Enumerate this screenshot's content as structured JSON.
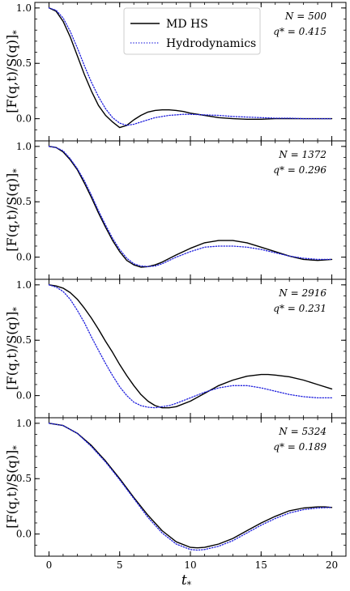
{
  "chart_data": {
    "type": "line",
    "xlabel": "t",
    "xlabel_sub": "*",
    "ylabel": "[F(q,t)/S(q)]",
    "ylabel_sub": "*",
    "xlim": [
      -1,
      21
    ],
    "ylim": [
      -0.2,
      1.05
    ],
    "xticks": [
      0,
      5,
      10,
      15,
      20
    ],
    "yticks": [
      0.0,
      0.5,
      1.0
    ],
    "ytick_labels": [
      "0.0",
      "0.5",
      "1.0"
    ],
    "legend": {
      "placement": "top-center (panel 1)",
      "entries": [
        {
          "label": "MD HS",
          "color": "#000000",
          "style": "solid"
        },
        {
          "label": "Hydrodynamics",
          "color": "#1f1fdd",
          "style": "dotted"
        }
      ]
    },
    "panels": [
      {
        "annotation_N": "N = 500",
        "annotation_q": "q* = 0.415",
        "series": [
          {
            "name": "MD HS",
            "x": [
              0,
              0.5,
              1,
              1.5,
              2,
              2.5,
              3,
              3.5,
              4,
              4.5,
              5,
              5.5,
              6,
              6.5,
              7,
              7.5,
              8,
              8.5,
              9,
              9.5,
              10,
              11,
              12,
              13,
              14,
              15,
              16,
              17,
              18,
              19,
              20
            ],
            "y": [
              1.0,
              0.97,
              0.88,
              0.74,
              0.57,
              0.4,
              0.25,
              0.12,
              0.03,
              -0.03,
              -0.08,
              -0.06,
              -0.01,
              0.03,
              0.06,
              0.075,
              0.08,
              0.08,
              0.075,
              0.065,
              0.05,
              0.03,
              0.01,
              0.0,
              -0.005,
              -0.005,
              0.0,
              0.0,
              0.0,
              0.0,
              0.0
            ]
          },
          {
            "name": "Hydrodynamics",
            "x": [
              0,
              0.5,
              1,
              1.5,
              2,
              2.5,
              3,
              3.5,
              4,
              4.5,
              5,
              5.5,
              6,
              6.5,
              7,
              7.5,
              8,
              8.5,
              9,
              9.5,
              10,
              11,
              12,
              13,
              14,
              15,
              16,
              17,
              18,
              19,
              20
            ],
            "y": [
              1.0,
              0.98,
              0.91,
              0.79,
              0.64,
              0.48,
              0.33,
              0.2,
              0.09,
              0.01,
              -0.04,
              -0.06,
              -0.05,
              -0.03,
              -0.01,
              0.01,
              0.02,
              0.03,
              0.035,
              0.04,
              0.04,
              0.035,
              0.03,
              0.02,
              0.015,
              0.01,
              0.005,
              0.005,
              0.0,
              0.0,
              0.0
            ]
          }
        ]
      },
      {
        "annotation_N": "N = 1372",
        "annotation_q": "q* = 0.296",
        "series": [
          {
            "name": "MD HS",
            "x": [
              0,
              0.5,
              1,
              1.5,
              2,
              2.5,
              3,
              3.5,
              4,
              4.5,
              5,
              5.5,
              6,
              6.5,
              7,
              7.5,
              8,
              9,
              10,
              11,
              12,
              13,
              14,
              15,
              16,
              17,
              18,
              19,
              20
            ],
            "y": [
              1.0,
              0.99,
              0.95,
              0.88,
              0.79,
              0.67,
              0.54,
              0.4,
              0.27,
              0.15,
              0.05,
              -0.03,
              -0.07,
              -0.09,
              -0.085,
              -0.07,
              -0.045,
              0.02,
              0.08,
              0.13,
              0.15,
              0.15,
              0.13,
              0.09,
              0.05,
              0.01,
              -0.02,
              -0.03,
              -0.02
            ]
          },
          {
            "name": "Hydrodynamics",
            "x": [
              0,
              0.5,
              1,
              1.5,
              2,
              2.5,
              3,
              3.5,
              4,
              4.5,
              5,
              5.5,
              6,
              6.5,
              7,
              7.5,
              8,
              9,
              10,
              11,
              12,
              13,
              14,
              15,
              16,
              17,
              18,
              19,
              20
            ],
            "y": [
              1.0,
              0.99,
              0.96,
              0.89,
              0.8,
              0.69,
              0.56,
              0.42,
              0.29,
              0.17,
              0.07,
              -0.01,
              -0.06,
              -0.08,
              -0.085,
              -0.08,
              -0.06,
              0.0,
              0.05,
              0.09,
              0.1,
              0.1,
              0.09,
              0.07,
              0.04,
              0.01,
              -0.01,
              -0.02,
              -0.02
            ]
          }
        ]
      },
      {
        "annotation_N": "N = 2916",
        "annotation_q": "q* = 0.231",
        "series": [
          {
            "name": "MD HS",
            "x": [
              0,
              0.5,
              1,
              1.5,
              2,
              2.5,
              3,
              3.5,
              4,
              4.5,
              5,
              5.5,
              6,
              6.5,
              7,
              7.5,
              8,
              8.5,
              9,
              10,
              11,
              12,
              13,
              14,
              15,
              15.5,
              16,
              17,
              18,
              19,
              20
            ],
            "y": [
              1.0,
              0.99,
              0.97,
              0.93,
              0.87,
              0.79,
              0.7,
              0.6,
              0.49,
              0.39,
              0.28,
              0.18,
              0.09,
              0.01,
              -0.05,
              -0.09,
              -0.11,
              -0.11,
              -0.1,
              -0.05,
              0.02,
              0.09,
              0.14,
              0.175,
              0.19,
              0.19,
              0.185,
              0.17,
              0.14,
              0.1,
              0.06
            ]
          },
          {
            "name": "Hydrodynamics",
            "x": [
              0,
              0.5,
              1,
              1.5,
              2,
              2.5,
              3,
              3.5,
              4,
              4.5,
              5,
              5.5,
              6,
              6.5,
              7,
              7.5,
              8,
              8.5,
              9,
              10,
              11,
              12,
              13,
              14,
              15,
              16,
              17,
              18,
              19,
              20
            ],
            "y": [
              1.0,
              0.98,
              0.94,
              0.87,
              0.77,
              0.66,
              0.53,
              0.41,
              0.29,
              0.18,
              0.08,
              0.0,
              -0.06,
              -0.09,
              -0.105,
              -0.11,
              -0.1,
              -0.09,
              -0.07,
              -0.02,
              0.03,
              0.07,
              0.09,
              0.09,
              0.07,
              0.04,
              0.01,
              -0.01,
              -0.02,
              -0.02
            ]
          }
        ]
      },
      {
        "annotation_N": "N = 5324",
        "annotation_q": "q* = 0.189",
        "series": [
          {
            "name": "MD HS",
            "x": [
              0,
              1,
              2,
              3,
              4,
              5,
              6,
              7,
              8,
              9,
              10,
              10.5,
              11,
              12,
              13,
              14,
              15,
              16,
              17,
              18,
              19,
              19.5,
              20
            ],
            "y": [
              1.0,
              0.98,
              0.91,
              0.8,
              0.66,
              0.5,
              0.33,
              0.17,
              0.03,
              -0.07,
              -0.12,
              -0.125,
              -0.12,
              -0.09,
              -0.04,
              0.03,
              0.1,
              0.16,
              0.21,
              0.235,
              0.245,
              0.245,
              0.24
            ]
          },
          {
            "name": "Hydrodynamics",
            "x": [
              0,
              1,
              2,
              3,
              4,
              5,
              6,
              7,
              8,
              9,
              10,
              10.5,
              11,
              12,
              13,
              14,
              15,
              16,
              17,
              18,
              19,
              20
            ],
            "y": [
              1.0,
              0.98,
              0.91,
              0.79,
              0.65,
              0.49,
              0.32,
              0.15,
              0.01,
              -0.09,
              -0.14,
              -0.145,
              -0.14,
              -0.11,
              -0.06,
              0.01,
              0.08,
              0.14,
              0.19,
              0.22,
              0.235,
              0.24
            ]
          }
        ]
      }
    ]
  }
}
